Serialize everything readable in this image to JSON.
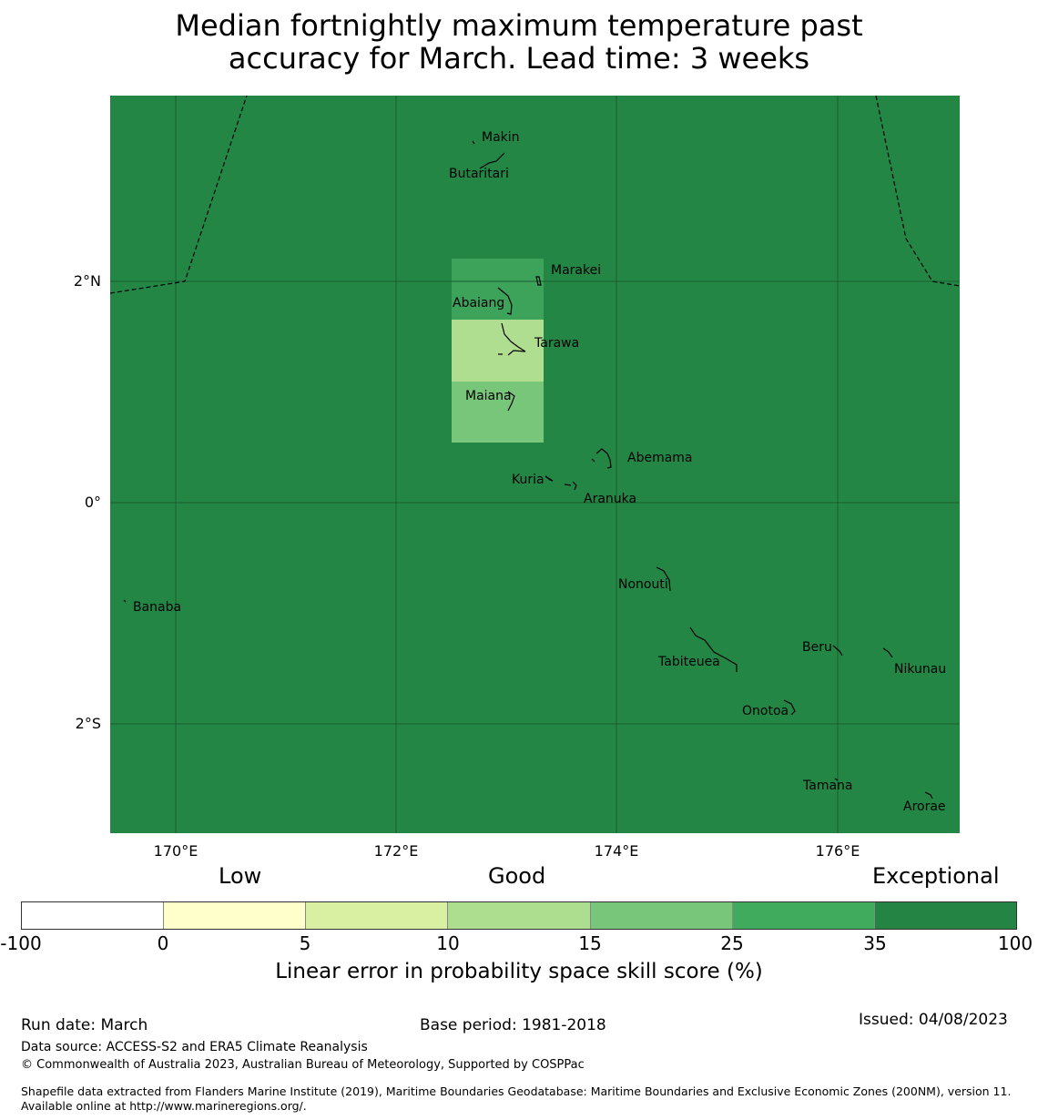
{
  "title": {
    "line1": "Median fortnightly maximum temperature past",
    "line2": "accuracy for March. Lead time: 3 weeks"
  },
  "map": {
    "background_color": "#248645",
    "grid_color": "#1a5e30",
    "lat_labels": [
      "2°N",
      "0°",
      "2°S"
    ],
    "lon_labels": [
      "170°E",
      "172°E",
      "174°E",
      "176°E"
    ],
    "grid_cells": [
      {
        "lat_range": "1.67N-2.2N",
        "lon_range": "172.5E-173.33E",
        "color": "#3da35a"
      },
      {
        "lat_range": "1.12N-1.67N",
        "lon_range": "172.5E-173.33E",
        "color": "#b0de91"
      },
      {
        "lat_range": "0.55N-1.12N",
        "lon_range": "172.5E-173.33E",
        "color": "#78c67a"
      }
    ],
    "islands": [
      "Makin",
      "Butaritari",
      "Marakei",
      "Abaiang",
      "Tarawa",
      "Maiana",
      "Abemama",
      "Kuria",
      "Aranuka",
      "Nonouti",
      "Banaba",
      "Tabiteuea",
      "Beru",
      "Nikunau",
      "Onotoa",
      "Tamana",
      "Arorae"
    ]
  },
  "legend": {
    "categories": [
      "Low",
      "Good",
      "Exceptional"
    ],
    "colors": [
      "#ffffff",
      "#ffffcc",
      "#d9f0a3",
      "#addd8e",
      "#78c679",
      "#41ab5d",
      "#238443"
    ],
    "ticks": [
      "-100",
      "0",
      "5",
      "10",
      "15",
      "25",
      "35",
      "100"
    ],
    "label": "Linear error in probability space skill score (%)"
  },
  "footer": {
    "run_date": "Run date: March",
    "base_period": "Base period: 1981-2018",
    "issued": "Issued: 04/08/2023",
    "data_source": "Data source: ACCESS-S2 and ERA5 Climate Reanalysis",
    "copyright": "© Commonwealth of Australia 2023, Australian Bureau of Meteorology, Supported by COSPPac",
    "shapefile": "Shapefile data extracted from Flanders Marine Institute (2019), Maritime Boundaries Geodatabase: Maritime Boundaries and Exclusive Economic Zones (200NM), version 11. Available online at http://www.marineregions.org/."
  }
}
